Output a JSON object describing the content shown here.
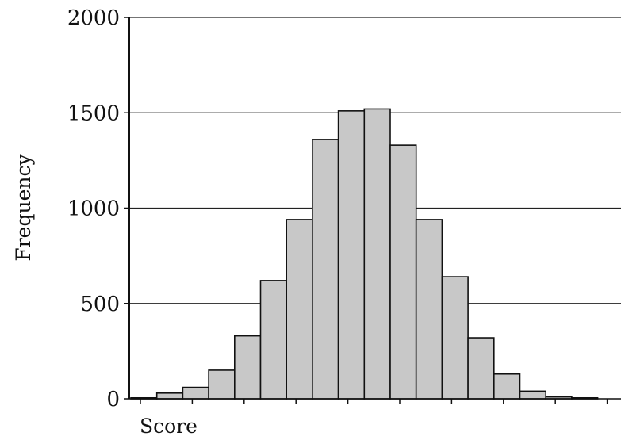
{
  "chart_data": {
    "type": "bar",
    "title": "",
    "xlabel": "Score",
    "ylabel": "Frequency",
    "ylim": [
      0,
      2000
    ],
    "y_ticks": [
      "0",
      "500",
      "1000",
      "1500",
      "2000"
    ],
    "y_tick_values": [
      0,
      500,
      1000,
      1500,
      2000
    ],
    "grid": "horizontal",
    "legend": "none",
    "bar_color": "#c8c8c8",
    "bar_edge_color": "#111111",
    "values": [
      5,
      30,
      60,
      150,
      330,
      620,
      940,
      1360,
      1510,
      1520,
      1330,
      940,
      640,
      320,
      130,
      40,
      10,
      5
    ]
  }
}
